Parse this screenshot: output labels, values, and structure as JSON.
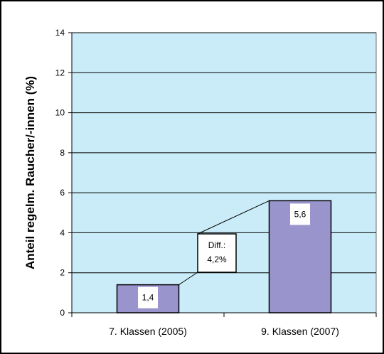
{
  "chart_data": {
    "type": "bar",
    "title": "",
    "xlabel": "",
    "ylabel": "Anteil regelm. Raucher/-innen (%)",
    "categories": [
      "7. Klassen (2005)",
      "9. Klassen (2007)"
    ],
    "values": [
      1.4,
      5.6
    ],
    "data_labels": [
      "1,4",
      "5,6"
    ],
    "ylim": [
      0,
      14
    ],
    "yticks": [
      0,
      2,
      4,
      6,
      8,
      10,
      12,
      14
    ],
    "grid": true,
    "legend": "none",
    "annotation": {
      "line1": "Diff.:",
      "line2": "4,2%"
    },
    "colors": {
      "bar": "#9a94cc",
      "plot_background": "#c9ecf8",
      "grid": "#000000",
      "frame": "#000000"
    }
  }
}
